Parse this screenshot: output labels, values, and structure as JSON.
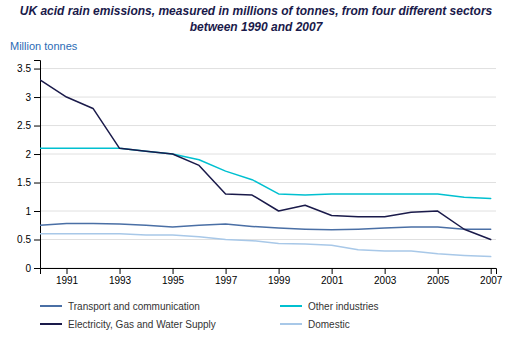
{
  "chart_data": {
    "type": "line",
    "title": "UK acid rain emissions, measured in millions of tonnes, from four different sectors",
    "subtitle": "between 1990 and 2007",
    "ylabel": "Million tonnes",
    "x": [
      1990,
      1991,
      1992,
      1993,
      1994,
      1995,
      1996,
      1997,
      1998,
      1999,
      2000,
      2001,
      2002,
      2003,
      2004,
      2005,
      2006,
      2007
    ],
    "series": [
      {
        "name": "Transport and communication",
        "color": "#4a6fa5",
        "values": [
          0.75,
          0.78,
          0.78,
          0.77,
          0.75,
          0.72,
          0.75,
          0.77,
          0.73,
          0.7,
          0.68,
          0.67,
          0.68,
          0.7,
          0.72,
          0.72,
          0.68,
          0.68
        ]
      },
      {
        "name": "Other industries",
        "color": "#00c0d0",
        "values": [
          2.1,
          2.1,
          2.1,
          2.1,
          2.05,
          2.0,
          1.9,
          1.7,
          1.55,
          1.3,
          1.28,
          1.3,
          1.3,
          1.3,
          1.3,
          1.3,
          1.24,
          1.22
        ]
      },
      {
        "name": "Electricity, Gas and Water Supply",
        "color": "#1a1a4a",
        "values": [
          3.3,
          3.0,
          2.8,
          2.1,
          2.05,
          2.0,
          1.8,
          1.3,
          1.28,
          1.0,
          1.1,
          0.92,
          0.9,
          0.9,
          0.98,
          1.0,
          0.68,
          0.5
        ]
      },
      {
        "name": "Domestic",
        "color": "#a8c8e8",
        "values": [
          0.6,
          0.6,
          0.6,
          0.6,
          0.58,
          0.58,
          0.55,
          0.5,
          0.48,
          0.43,
          0.42,
          0.4,
          0.32,
          0.3,
          0.3,
          0.25,
          0.22,
          0.2
        ]
      }
    ],
    "xlim": [
      1990,
      2007.2
    ],
    "ylim": [
      0,
      3.65
    ],
    "xticks": [
      1991,
      1993,
      1995,
      1997,
      1999,
      2001,
      2003,
      2005,
      2007
    ],
    "yticks": [
      0,
      0.5,
      1,
      1.5,
      2,
      2.5,
      3,
      3.5
    ],
    "grid": true,
    "legend": "bottom"
  }
}
